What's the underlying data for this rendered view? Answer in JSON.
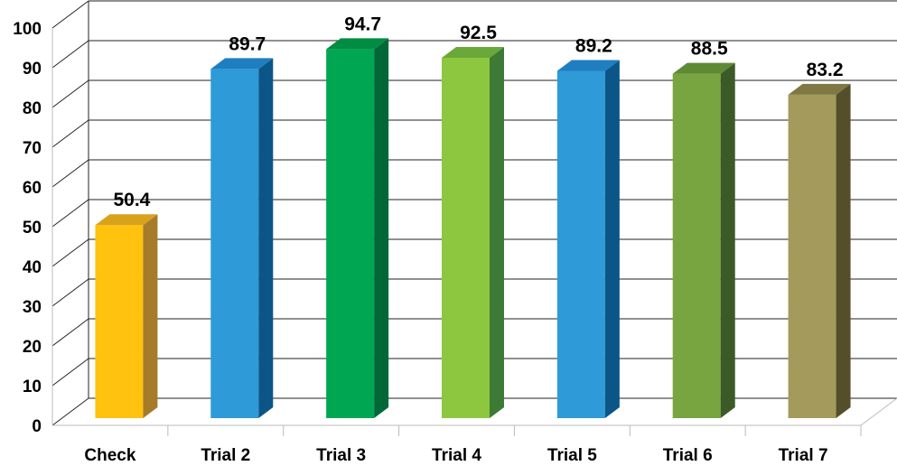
{
  "chart_data": {
    "type": "bar",
    "categories": [
      "Check",
      "Trial 2",
      "Trial 3",
      "Trial 4",
      "Trial 5",
      "Trial 6",
      "Trial 7"
    ],
    "values": [
      50.4,
      89.7,
      94.7,
      92.5,
      89.2,
      88.5,
      83.2
    ],
    "data_labels": [
      "50.4",
      "89.7",
      "94.7",
      "92.5",
      "89.2",
      "88.5",
      "83.2"
    ],
    "ylim": [
      0,
      100
    ],
    "yticks": [
      "0",
      "10",
      "20",
      "30",
      "40",
      "50",
      "60",
      "70",
      "80",
      "90",
      "100"
    ],
    "grid": true,
    "style": "3d",
    "bar_colors": [
      {
        "front": "#FFC20E",
        "side": "#A67C2A",
        "top": "#D9A21B"
      },
      {
        "front": "#2E9AD8",
        "side": "#0B5687",
        "top": "#1F7EC0"
      },
      {
        "front": "#00A651",
        "side": "#006837",
        "top": "#008C43"
      },
      {
        "front": "#8DC63F",
        "side": "#3C7A35",
        "top": "#6BA83A"
      },
      {
        "front": "#2E9AD8",
        "side": "#0B5687",
        "top": "#1F7EC0"
      },
      {
        "front": "#78A540",
        "side": "#3B5A28",
        "top": "#5E8A34"
      },
      {
        "front": "#A39A5B",
        "side": "#544F2A",
        "top": "#7F7842"
      }
    ]
  }
}
